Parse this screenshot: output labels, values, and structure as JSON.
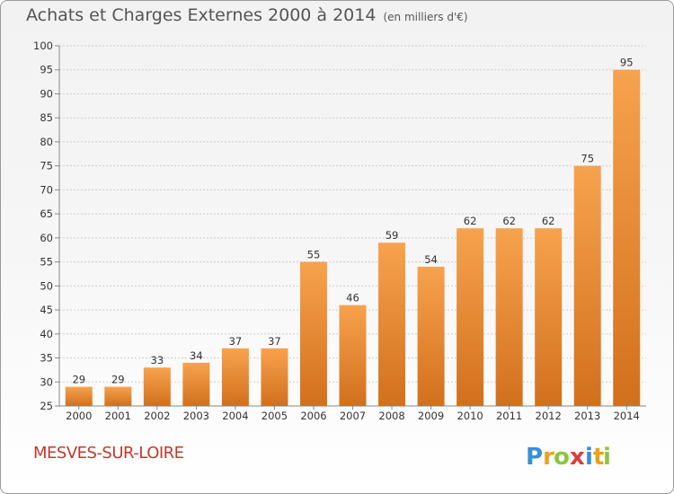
{
  "title": "Achats et Charges Externes 2000 à 2014",
  "subtitle": "(en milliers d'€)",
  "location": "MESVES-SUR-LOIRE",
  "logo_text": "Proxiti",
  "colors": {
    "bar_top": "#f7a24e",
    "bar_bottom": "#d2701c",
    "title": "#555555",
    "location": "#c0392b",
    "grid": "#cccccc"
  },
  "chart_data": {
    "type": "bar",
    "title": "Achats et Charges Externes 2000 à 2014",
    "subtitle": "(en milliers d'€)",
    "xlabel": "",
    "ylabel": "",
    "ylim": [
      25,
      100
    ],
    "yticks": [
      25,
      30,
      35,
      40,
      45,
      50,
      55,
      60,
      65,
      70,
      75,
      80,
      85,
      90,
      95,
      100
    ],
    "grid": true,
    "categories": [
      "2000",
      "2001",
      "2002",
      "2003",
      "2004",
      "2005",
      "2006",
      "2007",
      "2008",
      "2009",
      "2010",
      "2011",
      "2012",
      "2013",
      "2014"
    ],
    "values": [
      29,
      29,
      33,
      34,
      37,
      37,
      55,
      46,
      59,
      54,
      62,
      62,
      62,
      75,
      95
    ],
    "data_labels": [
      "29",
      "29",
      "33",
      "34",
      "37",
      "37",
      "55",
      "46",
      "59",
      "54",
      "62",
      "62",
      "62",
      "75",
      "95"
    ]
  }
}
